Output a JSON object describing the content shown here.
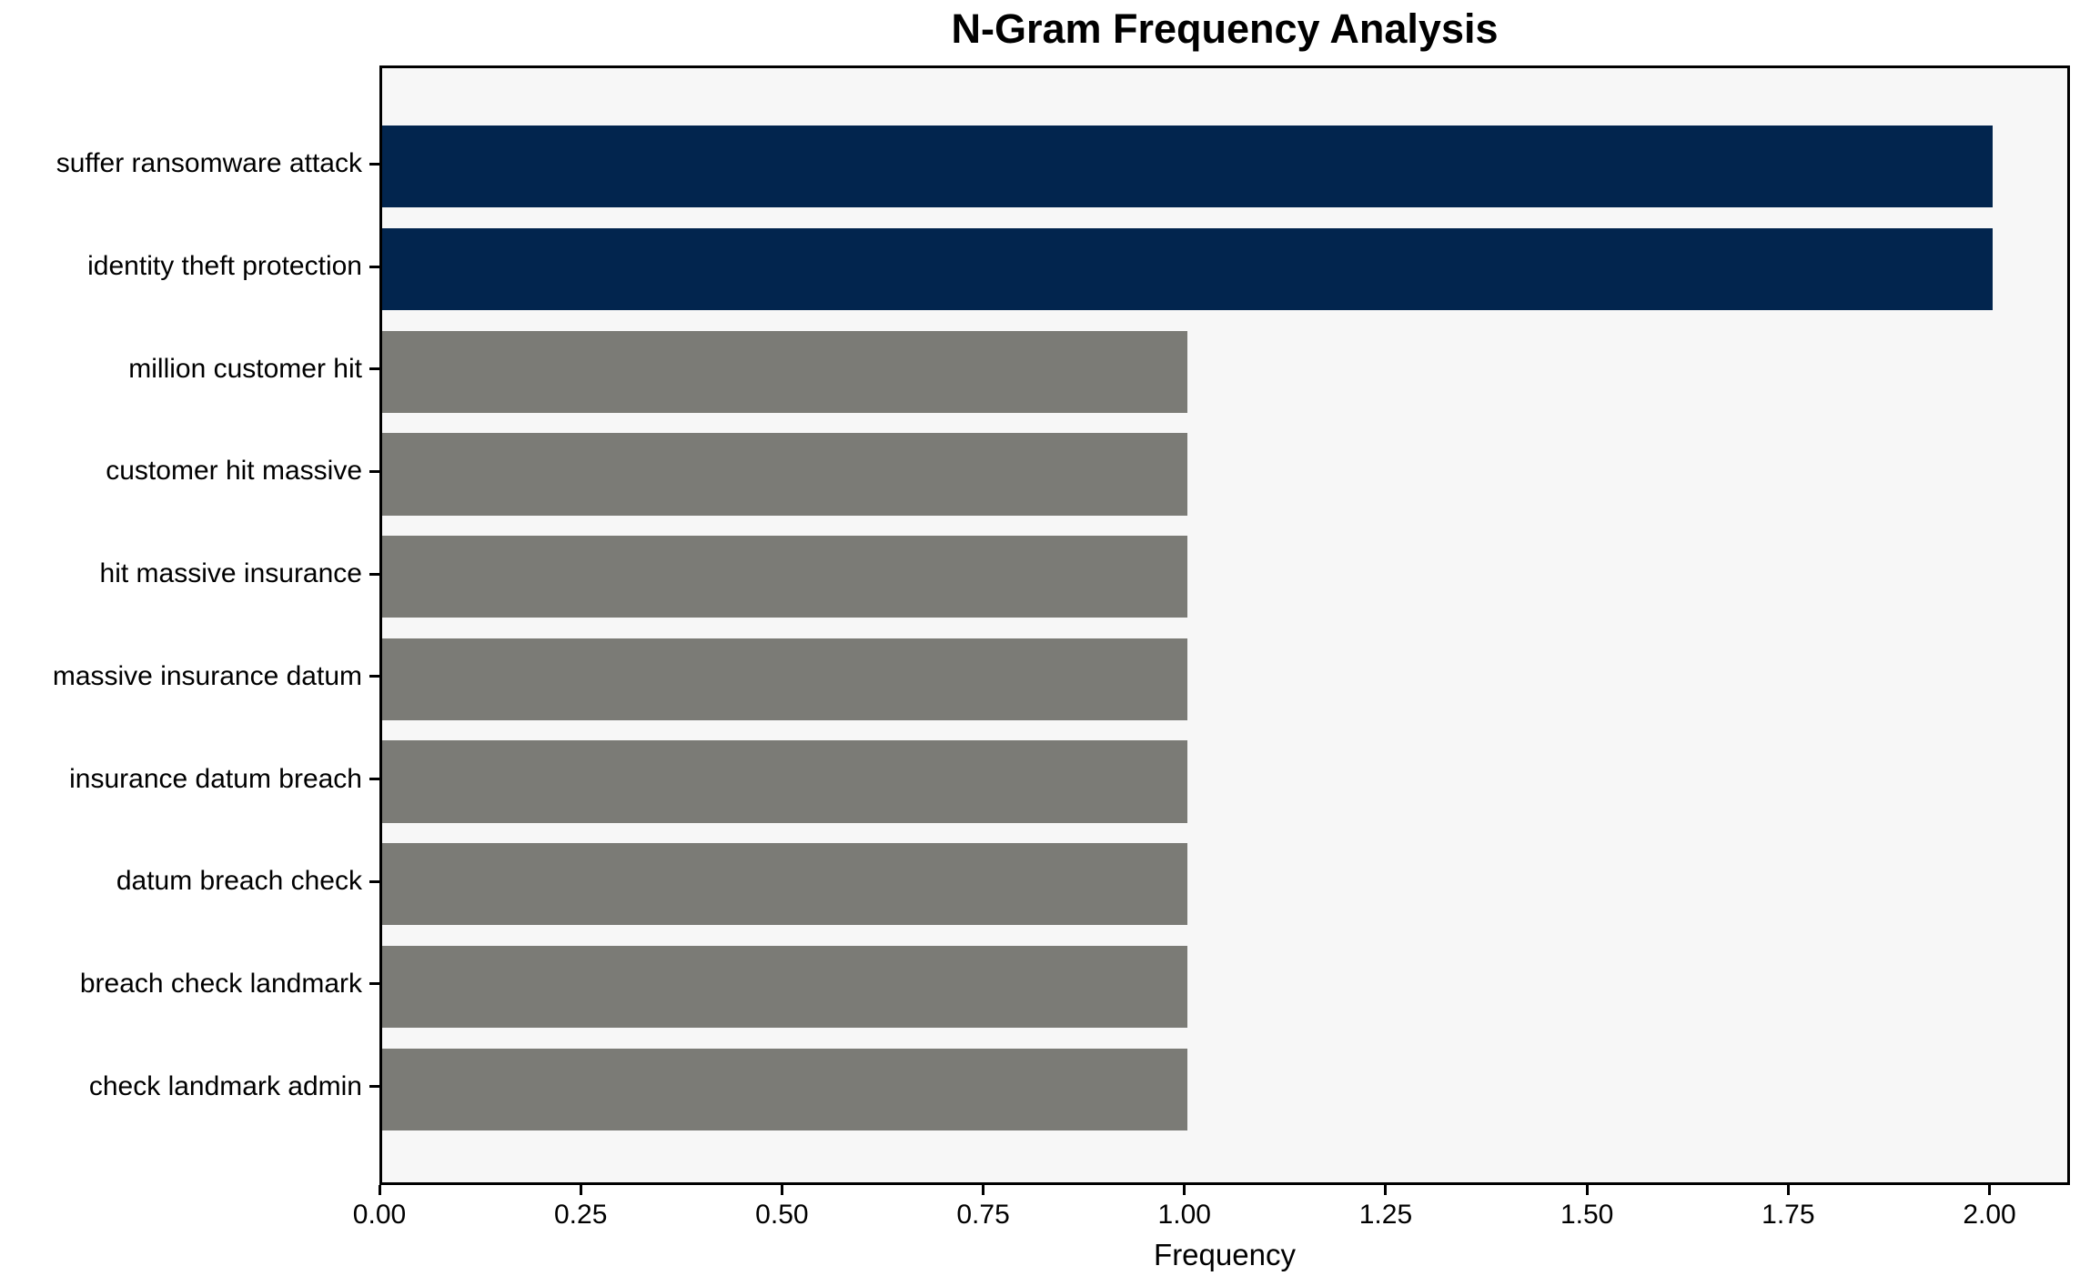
{
  "chart_data": {
    "type": "bar",
    "orientation": "horizontal",
    "title": "N-Gram Frequency Analysis",
    "xlabel": "Frequency",
    "ylabel": "",
    "categories": [
      "suffer ransomware attack",
      "identity theft protection",
      "million customer hit",
      "customer hit massive",
      "hit massive insurance",
      "massive insurance datum",
      "insurance datum breach",
      "datum breach check",
      "breach check landmark",
      "check landmark admin"
    ],
    "values": [
      2,
      2,
      1,
      1,
      1,
      1,
      1,
      1,
      1,
      1
    ],
    "bar_colors": [
      "#02254e",
      "#02254e",
      "#7b7b76",
      "#7b7b76",
      "#7b7b76",
      "#7b7b76",
      "#7b7b76",
      "#7b7b76",
      "#7b7b76",
      "#7b7b76"
    ],
    "xlim": [
      0,
      2.1
    ],
    "x_tick_labels": [
      "0.00",
      "0.25",
      "0.50",
      "0.75",
      "1.00",
      "1.25",
      "1.50",
      "1.75",
      "2.00"
    ],
    "grid": false,
    "legend_position": "none"
  },
  "colors": {
    "figure_background": "#ffffff",
    "plot_background": "#f7f7f7",
    "axis": "#000000",
    "text": "#000000",
    "highlight_bar": "#02254e",
    "default_bar": "#7b7b76"
  }
}
